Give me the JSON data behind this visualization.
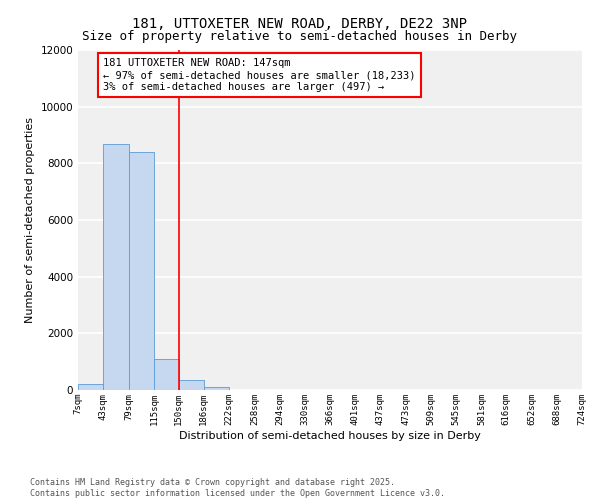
{
  "title": "181, UTTOXETER NEW ROAD, DERBY, DE22 3NP",
  "subtitle": "Size of property relative to semi-detached houses in Derby",
  "xlabel": "Distribution of semi-detached houses by size in Derby",
  "ylabel": "Number of semi-detached properties",
  "footer": "Contains HM Land Registry data © Crown copyright and database right 2025.\nContains public sector information licensed under the Open Government Licence v3.0.",
  "annotation_title": "181 UTTOXETER NEW ROAD: 147sqm",
  "annotation_line1": "← 97% of semi-detached houses are smaller (18,233)",
  "annotation_line2": "3% of semi-detached houses are larger (497) →",
  "bar_left_edges": [
    7,
    43,
    79,
    115,
    150,
    186,
    222,
    258,
    294,
    330,
    366,
    401,
    437,
    473,
    509,
    545,
    581,
    616,
    652,
    688
  ],
  "bar_widths": [
    36,
    36,
    36,
    35,
    36,
    36,
    36,
    36,
    36,
    36,
    35,
    36,
    36,
    36,
    36,
    36,
    35,
    36,
    36,
    36
  ],
  "bar_heights": [
    200,
    8700,
    8400,
    1100,
    350,
    100,
    5,
    2,
    1,
    0,
    0,
    0,
    0,
    0,
    0,
    0,
    0,
    0,
    0,
    0
  ],
  "tick_labels": [
    "7sqm",
    "43sqm",
    "79sqm",
    "115sqm",
    "150sqm",
    "186sqm",
    "222sqm",
    "258sqm",
    "294sqm",
    "330sqm",
    "366sqm",
    "401sqm",
    "437sqm",
    "473sqm",
    "509sqm",
    "545sqm",
    "581sqm",
    "616sqm",
    "652sqm",
    "688sqm",
    "724sqm"
  ],
  "tick_positions": [
    7,
    43,
    79,
    115,
    150,
    186,
    222,
    258,
    294,
    330,
    366,
    401,
    437,
    473,
    509,
    545,
    581,
    616,
    652,
    688,
    724
  ],
  "bar_color": "#c5d8f0",
  "bar_edge_color": "#5b9bd5",
  "vline_color": "red",
  "vline_x": 150,
  "ylim": [
    0,
    12000
  ],
  "xlim": [
    7,
    724
  ],
  "bg_color": "#f0f0f0",
  "grid_color": "white",
  "title_fontsize": 10,
  "subtitle_fontsize": 9,
  "axis_label_fontsize": 8,
  "tick_fontsize": 6.5,
  "annotation_fontsize": 7.5,
  "footer_fontsize": 6
}
